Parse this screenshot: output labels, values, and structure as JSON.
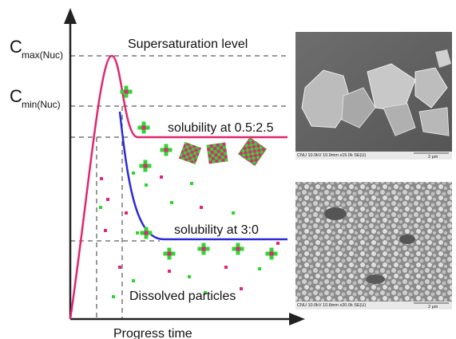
{
  "axes": {
    "y_label_max": {
      "symbol": "C",
      "subscript": "max(Nuc)"
    },
    "y_label_min": {
      "symbol": "C",
      "subscript": "min(Nuc)"
    },
    "x_label": "Progress time"
  },
  "annotations": {
    "supersaturation": "Supersaturation level",
    "solubility_high": "solubility at 0.5:2.5",
    "solubility_low": "solubility at 3:0",
    "dissolved": "Dissolved particles"
  },
  "images": [
    {
      "caption": "CNU 10.0kV 10.9mm x15.0k SE(U)",
      "scale": "2 µm"
    },
    {
      "caption": "CNU 10.0kV 10.8mm x20.0k SE(U)",
      "scale": "2 µm"
    }
  ]
}
